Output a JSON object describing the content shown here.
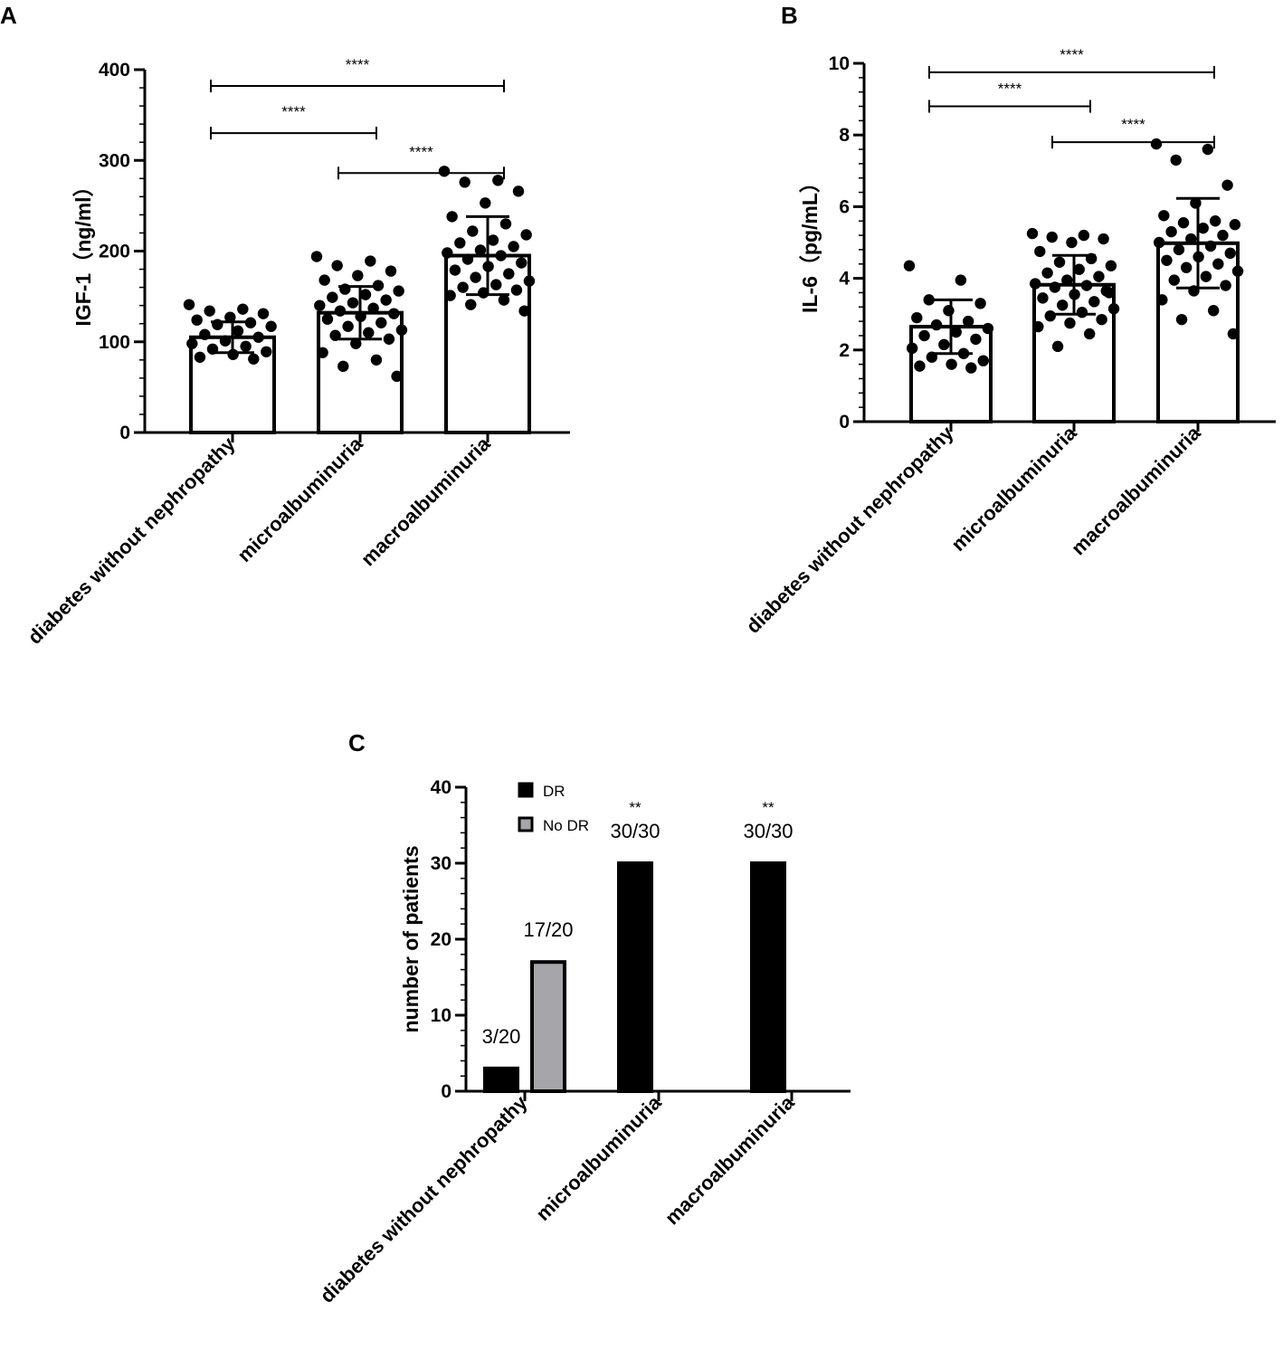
{
  "chart_data": [
    {
      "type": "bar",
      "panel": "A",
      "ylabel": "IGF-1（ng/ml）",
      "ylim": [
        0,
        400
      ],
      "yticks": [
        "0",
        "100",
        "200",
        "300",
        "400"
      ],
      "categories": [
        "diabetes without nephropathy",
        "microalbuminuria",
        "macroalbuminuria"
      ],
      "means": [
        105,
        132,
        195
      ],
      "sd": [
        17,
        29,
        43
      ],
      "points": [
        [
          141,
          136,
          134,
          131,
          127,
          124,
          121,
          119,
          117,
          112,
          108,
          105,
          101,
          98,
          95,
          92,
          89,
          86,
          83,
          81
        ],
        [
          194,
          189,
          184,
          178,
          173,
          168,
          162,
          158,
          156,
          152,
          149,
          146,
          143,
          140,
          137,
          134,
          131,
          128,
          125,
          121,
          117,
          113,
          110,
          107,
          103,
          98,
          88,
          80,
          73,
          62
        ],
        [
          288,
          278,
          276,
          266,
          253,
          238,
          230,
          222,
          218,
          212,
          209,
          205,
          201,
          198,
          195,
          191,
          187,
          183,
          179,
          175,
          171,
          167,
          163,
          160,
          157,
          154,
          151,
          146,
          141,
          134
        ]
      ],
      "significance": [
        {
          "from": 0,
          "to": 2,
          "label": "****",
          "y": 382
        },
        {
          "from": 0,
          "to": 1,
          "label": "****",
          "y": 330
        },
        {
          "from": 1,
          "to": 2,
          "label": "****",
          "y": 286
        }
      ],
      "grid": false
    },
    {
      "type": "bar",
      "panel": "B",
      "ylabel": "IL-6（pg/mL）",
      "ylim": [
        0,
        10
      ],
      "yticks": [
        "0",
        "2",
        "4",
        "6",
        "8",
        "10"
      ],
      "categories": [
        "diabetes without nephropathy",
        "microalbuminuria",
        "macroalbuminuria"
      ],
      "means": [
        2.65,
        3.82,
        4.98
      ],
      "sd": [
        0.75,
        0.82,
        1.25
      ],
      "points": [
        [
          4.35,
          3.95,
          3.4,
          3.3,
          3.1,
          2.9,
          2.8,
          2.7,
          2.6,
          2.5,
          2.4,
          2.3,
          2.15,
          2.05,
          1.9,
          1.8,
          1.7,
          1.6,
          1.55,
          1.5
        ],
        [
          5.25,
          5.2,
          5.15,
          5.1,
          5.0,
          4.75,
          4.55,
          4.45,
          4.35,
          4.25,
          4.15,
          4.05,
          3.95,
          3.85,
          3.8,
          3.75,
          3.65,
          3.55,
          3.45,
          3.35,
          3.25,
          3.15,
          3.05,
          2.95,
          2.85,
          2.75,
          2.65,
          2.45,
          2.1,
          3.6
        ],
        [
          7.75,
          7.6,
          7.3,
          6.6,
          6.1,
          5.75,
          5.6,
          5.55,
          5.5,
          5.4,
          5.3,
          5.2,
          5.1,
          5.0,
          4.9,
          4.8,
          4.7,
          4.6,
          4.5,
          4.4,
          4.3,
          4.2,
          4.05,
          3.95,
          3.8,
          3.65,
          3.4,
          3.1,
          2.85,
          2.45
        ]
      ],
      "significance": [
        {
          "from": 0,
          "to": 2,
          "label": "****",
          "y": 9.75
        },
        {
          "from": 0,
          "to": 1,
          "label": "****",
          "y": 8.8
        },
        {
          "from": 1,
          "to": 2,
          "label": "****",
          "y": 7.8
        }
      ],
      "grid": false
    },
    {
      "type": "bar",
      "panel": "C",
      "ylabel": "number of patients",
      "ylim": [
        0,
        40
      ],
      "yticks": [
        "0",
        "10",
        "20",
        "30",
        "40"
      ],
      "categories": [
        "diabetes without nephropathy",
        "microalbuminuria",
        "macroalbuminuria"
      ],
      "series": [
        {
          "name": "DR",
          "values": [
            3,
            30,
            30
          ],
          "color": "#000000",
          "labels": [
            "3/20",
            "30/30",
            "30/30"
          ],
          "sig": [
            "",
            "**",
            "**"
          ]
        },
        {
          "name": "No DR",
          "values": [
            17,
            0,
            0
          ],
          "color": "#a6a6aa",
          "labels": [
            "17/20",
            "",
            ""
          ],
          "sig": [
            "",
            "",
            ""
          ]
        }
      ],
      "legend": "top-left",
      "grid": false
    }
  ],
  "labels": {
    "panel_a": "A",
    "panel_b": "B",
    "panel_c": "C"
  }
}
